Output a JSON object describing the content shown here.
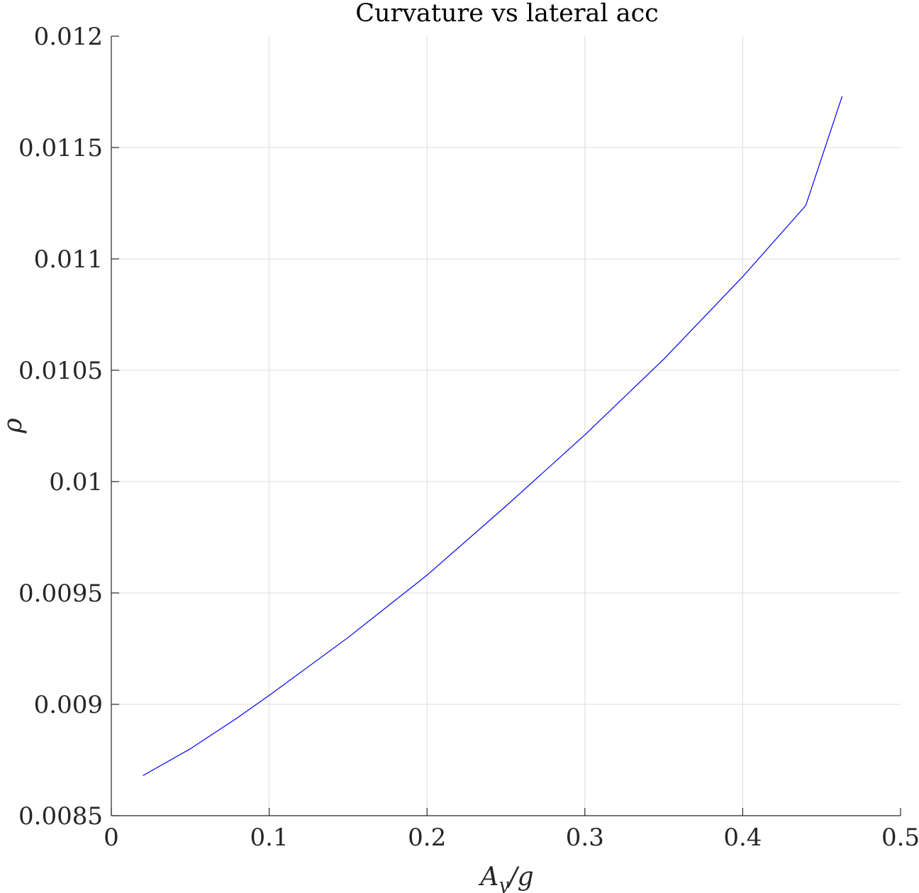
{
  "chart_data": {
    "type": "line",
    "title": "Curvature vs lateral acc",
    "xlabel": "A_y/g",
    "xlabel_main": "A",
    "xlabel_sub": "y",
    "xlabel_tail": "/g",
    "ylabel": "ρ",
    "xlim": [
      0,
      0.5
    ],
    "ylim": [
      0.0085,
      0.012
    ],
    "x_ticks": [
      "0",
      "0.1",
      "0.2",
      "0.3",
      "0.4",
      "0.5"
    ],
    "y_ticks": [
      "0.0085",
      "0.009",
      "0.0095",
      "0.01",
      "0.0105",
      "0.011",
      "0.0115",
      "0.012"
    ],
    "grid": true,
    "colors": {
      "line": "#0000ff",
      "grid": "#dcdcdc",
      "axis": "#262626"
    },
    "series": [
      {
        "x": [
          0.02,
          0.05,
          0.08,
          0.1,
          0.15,
          0.2,
          0.25,
          0.3,
          0.35,
          0.4,
          0.44,
          0.463
        ],
        "y": [
          0.00868,
          0.0088,
          0.00894,
          0.00904,
          0.0093,
          0.00958,
          0.00989,
          0.01021,
          0.01055,
          0.01092,
          0.01124,
          0.01173
        ]
      }
    ]
  }
}
